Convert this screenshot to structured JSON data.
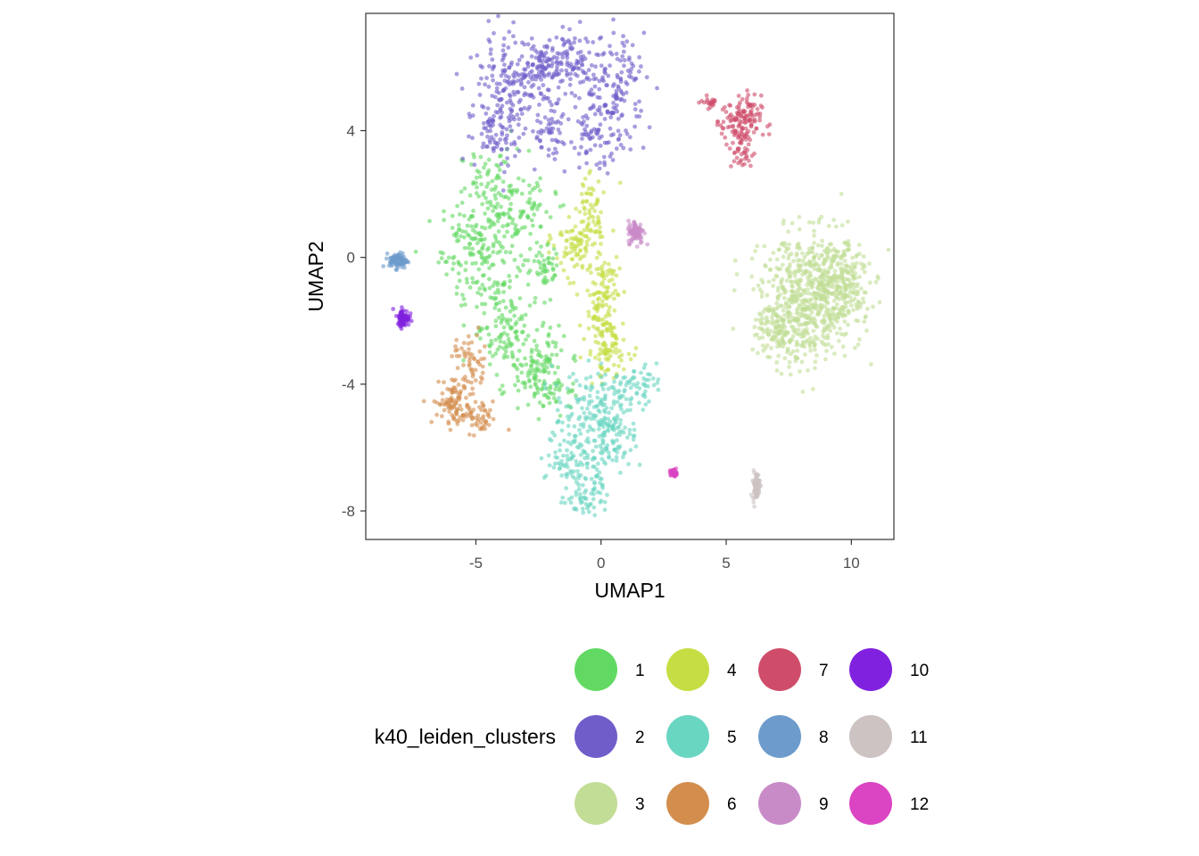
{
  "chart_data": {
    "type": "scatter",
    "title": "",
    "xlabel": "UMAP1",
    "ylabel": "UMAP2",
    "xlim": [
      -9.4,
      11.7
    ],
    "ylim": [
      -8.9,
      7.7
    ],
    "x_ticks": [
      -5,
      0,
      5,
      10
    ],
    "y_ticks": [
      -8,
      -4,
      0,
      4
    ],
    "x_tick_labels": [
      "-5",
      "0",
      "5",
      "10"
    ],
    "y_tick_labels": [
      "-8",
      "-4",
      "0",
      "4"
    ],
    "grid": false,
    "legend_position": "bottom",
    "legend_title": "k40_leiden_clusters",
    "series": [
      {
        "name": "1",
        "color": "#62D963",
        "centroid": [
          -4.2,
          -0.8
        ],
        "regions": [
          {
            "cx": -4.3,
            "cy": 2.2,
            "sx": 0.7,
            "sy": 0.6,
            "w": 0.12
          },
          {
            "cx": -4.8,
            "cy": 0.3,
            "sx": 0.8,
            "sy": 0.9,
            "w": 0.28
          },
          {
            "cx": -3.2,
            "cy": 1.5,
            "sx": 0.7,
            "sy": 0.5,
            "w": 0.1
          },
          {
            "cx": -4.0,
            "cy": -2.2,
            "sx": 0.6,
            "sy": 0.8,
            "w": 0.18
          },
          {
            "cx": -2.6,
            "cy": -3.3,
            "sx": 0.6,
            "sy": 0.6,
            "w": 0.16
          },
          {
            "cx": -1.9,
            "cy": -4.2,
            "sx": 0.5,
            "sy": 0.3,
            "w": 0.08
          },
          {
            "cx": -2.3,
            "cy": -0.4,
            "sx": 0.35,
            "sy": 0.4,
            "w": 0.08
          }
        ]
      },
      {
        "name": "2",
        "color": "#705DC9",
        "centroid": [
          -1.9,
          5.0
        ],
        "regions": [
          {
            "cx": -3.6,
            "cy": 5.1,
            "sx": 0.9,
            "sy": 0.9,
            "w": 0.24
          },
          {
            "cx": -4.1,
            "cy": 4.0,
            "sx": 0.6,
            "sy": 0.5,
            "w": 0.09
          },
          {
            "cx": -2.6,
            "cy": 6.0,
            "sx": 0.8,
            "sy": 0.5,
            "w": 0.16
          },
          {
            "cx": -1.1,
            "cy": 6.2,
            "sx": 0.8,
            "sy": 0.45,
            "w": 0.14
          },
          {
            "cx": 0.6,
            "cy": 5.4,
            "sx": 0.6,
            "sy": 0.8,
            "w": 0.18
          },
          {
            "cx": -0.2,
            "cy": 3.9,
            "sx": 0.6,
            "sy": 0.6,
            "w": 0.13
          },
          {
            "cx": -2.0,
            "cy": 3.9,
            "sx": 0.4,
            "sy": 0.4,
            "w": 0.06
          }
        ]
      },
      {
        "name": "3",
        "color": "#C2DD96",
        "centroid": [
          8.2,
          -1.4
        ],
        "regions": [
          {
            "cx": 8.4,
            "cy": -1.3,
            "sx": 1.0,
            "sy": 1.0,
            "w": 0.65
          },
          {
            "cx": 9.5,
            "cy": -0.6,
            "sx": 0.6,
            "sy": 0.7,
            "w": 0.2
          },
          {
            "cx": 7.2,
            "cy": -2.2,
            "sx": 0.5,
            "sy": 0.5,
            "w": 0.15
          }
        ]
      },
      {
        "name": "4",
        "color": "#C6DE44",
        "centroid": [
          -0.1,
          -1.0
        ],
        "regions": [
          {
            "cx": -0.9,
            "cy": 0.4,
            "sx": 0.5,
            "sy": 0.5,
            "w": 0.28
          },
          {
            "cx": -0.5,
            "cy": 1.6,
            "sx": 0.3,
            "sy": 0.5,
            "w": 0.14
          },
          {
            "cx": 0.1,
            "cy": -1.5,
            "sx": 0.35,
            "sy": 0.9,
            "w": 0.4
          },
          {
            "cx": 0.3,
            "cy": -3.0,
            "sx": 0.4,
            "sy": 0.4,
            "w": 0.18
          }
        ]
      },
      {
        "name": "5",
        "color": "#69D6C2",
        "centroid": [
          -0.2,
          -5.6
        ],
        "regions": [
          {
            "cx": -0.3,
            "cy": -4.8,
            "sx": 0.8,
            "sy": 0.6,
            "w": 0.32
          },
          {
            "cx": 1.4,
            "cy": -4.0,
            "sx": 0.4,
            "sy": 0.3,
            "w": 0.12
          },
          {
            "cx": -1.0,
            "cy": -6.3,
            "sx": 0.6,
            "sy": 0.5,
            "w": 0.24
          },
          {
            "cx": -0.5,
            "cy": -7.5,
            "sx": 0.4,
            "sy": 0.35,
            "w": 0.14
          },
          {
            "cx": 0.6,
            "cy": -5.5,
            "sx": 0.4,
            "sy": 0.6,
            "w": 0.18
          }
        ]
      },
      {
        "name": "6",
        "color": "#D38E4E",
        "centroid": [
          -5.4,
          -4.3
        ],
        "regions": [
          {
            "cx": -5.9,
            "cy": -4.6,
            "sx": 0.4,
            "sy": 0.35,
            "w": 0.45
          },
          {
            "cx": -5.2,
            "cy": -3.4,
            "sx": 0.35,
            "sy": 0.5,
            "w": 0.3
          },
          {
            "cx": -4.9,
            "cy": -5.1,
            "sx": 0.4,
            "sy": 0.25,
            "w": 0.25
          }
        ]
      },
      {
        "name": "7",
        "color": "#CF4D6B",
        "centroid": [
          5.6,
          4.1
        ],
        "regions": [
          {
            "cx": 5.6,
            "cy": 4.3,
            "sx": 0.4,
            "sy": 0.4,
            "w": 0.7
          },
          {
            "cx": 5.6,
            "cy": 3.3,
            "sx": 0.25,
            "sy": 0.3,
            "w": 0.22
          },
          {
            "cx": 4.4,
            "cy": 4.9,
            "sx": 0.2,
            "sy": 0.1,
            "w": 0.08
          }
        ]
      },
      {
        "name": "8",
        "color": "#6D9BCC",
        "centroid": [
          -8.1,
          -0.1
        ],
        "regions": [
          {
            "cx": -8.1,
            "cy": -0.1,
            "sx": 0.18,
            "sy": 0.12,
            "w": 1.0
          }
        ]
      },
      {
        "name": "9",
        "color": "#C98BC8",
        "centroid": [
          1.4,
          0.8
        ],
        "regions": [
          {
            "cx": 1.4,
            "cy": 0.8,
            "sx": 0.16,
            "sy": 0.18,
            "w": 1.0
          }
        ]
      },
      {
        "name": "10",
        "color": "#8021DF",
        "centroid": [
          -7.9,
          -1.9
        ],
        "regions": [
          {
            "cx": -7.9,
            "cy": -1.9,
            "sx": 0.12,
            "sy": 0.13,
            "w": 1.0
          }
        ]
      },
      {
        "name": "11",
        "color": "#CCC3C2",
        "centroid": [
          6.2,
          -7.2
        ],
        "regions": [
          {
            "cx": 6.2,
            "cy": -7.2,
            "sx": 0.07,
            "sy": 0.22,
            "w": 1.0
          }
        ]
      },
      {
        "name": "12",
        "color": "#DB44C3",
        "centroid": [
          2.9,
          -6.8
        ],
        "regions": [
          {
            "cx": 2.9,
            "cy": -6.8,
            "sx": 0.06,
            "sy": 0.05,
            "w": 1.0
          }
        ]
      }
    ]
  }
}
